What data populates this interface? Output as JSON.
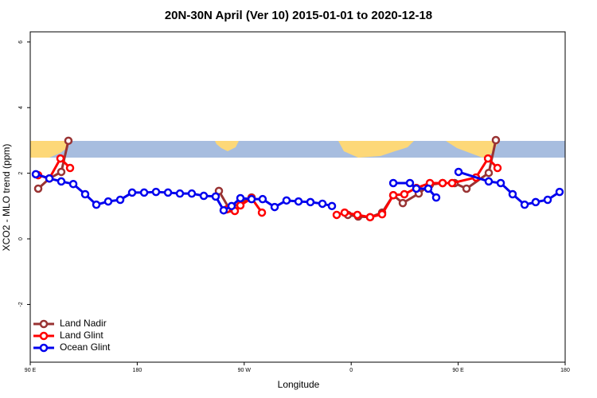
{
  "chart_data": {
    "type": "line",
    "title": "20N-30N April (Ver 10)   2015-01-01 to 2020-12-18",
    "x_label": "Longitude",
    "y_label": "XCO2 - MLO trend (ppm)",
    "xlim": [
      90,
      540
    ],
    "ylim": [
      -3.76,
      6.31
    ],
    "xticks": [
      {
        "value": 90,
        "label": "90 E"
      },
      180,
      {
        "value": 270,
        "label": "90 W"
      },
      {
        "value": 360,
        "label": "0"
      },
      {
        "value": 450,
        "label": "90 E"
      },
      {
        "value": 540,
        "label": "180"
      }
    ],
    "yticks": [
      -2,
      0,
      2,
      4,
      6
    ],
    "legend": "bottomleft",
    "series": [
      {
        "name": "Land Nadir",
        "color": "#993333",
        "x": [
          96.7,
          106.1,
          116.1,
          122.1,
          null,
          248.7,
          257.4,
          276.2,
          null,
          357.2,
          365.9,
          375.9,
          386.0,
          395.4,
          403.4,
          416.8,
          426.2,
          436.9,
          447.0,
          457.0,
          475.7,
          481.7
        ],
        "values": [
          1.53,
          1.84,
          2.04,
          2.99,
          null,
          1.46,
          0.92,
          1.26,
          null,
          0.73,
          0.68,
          0.66,
          0.8,
          1.33,
          1.09,
          1.38,
          1.65,
          1.7,
          1.7,
          1.53,
          2.01,
          3.01
        ]
      },
      {
        "name": "Land Glint",
        "color": "#ff0000",
        "x": [
          96.7,
          106.1,
          115.4,
          123.5,
          null,
          255.4,
          262.1,
          266.8,
          276.2,
          284.9,
          null,
          347.8,
          354.5,
          365.2,
          375.9,
          386.0,
          395.4,
          404.7,
          414.8,
          426.2,
          436.9,
          444.9,
          465.0,
          475.1,
          483.1
        ],
        "values": [
          1.94,
          1.84,
          2.45,
          2.16,
          null,
          0.9,
          0.85,
          1.02,
          1.24,
          0.8,
          null,
          0.73,
          0.8,
          0.73,
          0.66,
          0.75,
          1.33,
          1.36,
          1.55,
          1.7,
          1.7,
          1.7,
          1.87,
          2.45,
          2.16
        ]
      },
      {
        "name": "Ocean Glint",
        "color": "#0000ee",
        "x": [
          94.7,
          106.1,
          116.1,
          126.2,
          136.2,
          145.6,
          155.6,
          165.7,
          175.7,
          185.8,
          195.8,
          205.9,
          215.9,
          225.9,
          236.0,
          246.0,
          252.7,
          259.4,
          266.8,
          276.2,
          285.5,
          295.6,
          305.6,
          315.7,
          325.7,
          335.8,
          343.8,
          null,
          395.4,
          409.4,
          414.8,
          424.8,
          431.5,
          null,
          450.3,
          475.7,
          485.8,
          495.8,
          505.9,
          515.2,
          525.3,
          535.3
        ],
        "values": [
          1.97,
          1.84,
          1.75,
          1.67,
          1.36,
          1.04,
          1.14,
          1.19,
          1.41,
          1.41,
          1.43,
          1.41,
          1.38,
          1.38,
          1.31,
          1.29,
          0.87,
          1.0,
          1.24,
          1.21,
          1.21,
          0.97,
          1.17,
          1.14,
          1.12,
          1.07,
          1.0,
          null,
          1.7,
          1.7,
          1.53,
          1.53,
          1.26,
          null,
          2.04,
          1.75,
          1.7,
          1.36,
          1.04,
          1.12,
          1.19,
          1.43
        ]
      }
    ]
  }
}
